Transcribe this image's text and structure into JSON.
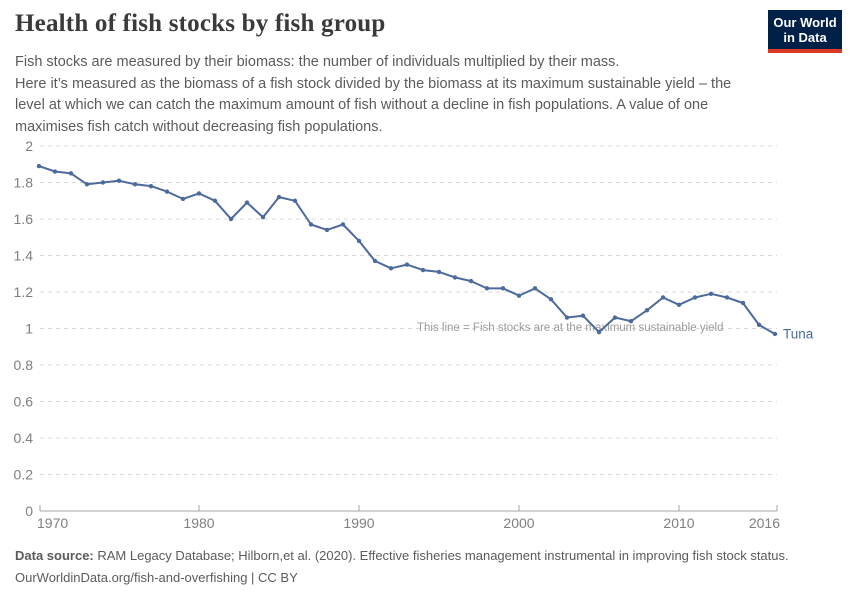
{
  "header": {
    "title": "Health of fish stocks by fish group",
    "logo": {
      "line1": "Our World",
      "line2": "in Data",
      "bg_color": "#002147",
      "bar_color": "#dc3927"
    }
  },
  "subtitle": {
    "lines": [
      "Fish stocks are measured by their biomass: the number of individuals multiplied by their mass.",
      "Here it’s measured as the biomass of a fish stock divided by the biomass at its maximum sustainable yield – the",
      "level at which we can catch the maximum amount of fish without a decline in fish populations. A value of one",
      "maximises fish catch without decreasing fish populations."
    ]
  },
  "chart_data": {
    "type": "line",
    "title": "Health of fish stocks by fish group",
    "x": [
      1970,
      1971,
      1972,
      1973,
      1974,
      1975,
      1976,
      1977,
      1978,
      1979,
      1980,
      1981,
      1982,
      1983,
      1984,
      1985,
      1986,
      1987,
      1988,
      1989,
      1990,
      1991,
      1992,
      1993,
      1994,
      1995,
      1996,
      1997,
      1998,
      1999,
      2000,
      2001,
      2002,
      2003,
      2004,
      2005,
      2006,
      2007,
      2008,
      2009,
      2010,
      2011,
      2012,
      2013,
      2014,
      2015,
      2016
    ],
    "series": [
      {
        "name": "Tuna",
        "values": [
          1.89,
          1.86,
          1.85,
          1.79,
          1.8,
          1.81,
          1.79,
          1.78,
          1.75,
          1.71,
          1.74,
          1.7,
          1.6,
          1.69,
          1.61,
          1.72,
          1.7,
          1.57,
          1.54,
          1.57,
          1.48,
          1.37,
          1.33,
          1.35,
          1.32,
          1.31,
          1.28,
          1.26,
          1.22,
          1.22,
          1.18,
          1.22,
          1.16,
          1.06,
          1.07,
          0.98,
          1.06,
          1.04,
          1.1,
          1.17,
          1.13,
          1.17,
          1.19,
          1.17,
          1.14,
          1.02,
          0.97
        ]
      }
    ],
    "xlabel": "",
    "ylabel": "",
    "ylim": [
      0,
      2
    ],
    "yticks": [
      0,
      0.2,
      0.4,
      0.6,
      0.8,
      1,
      1.2,
      1.4,
      1.6,
      1.8,
      2
    ],
    "ytick_labels": [
      "0",
      "0.2",
      "0.4",
      "0.6",
      "0.8",
      "1",
      "1.2",
      "1.4",
      "1.6",
      "1.8",
      "2"
    ],
    "xticks": [
      1970,
      1980,
      1990,
      2000,
      2010,
      2016
    ],
    "xtick_labels": [
      "1970",
      "1980",
      "1990",
      "2000",
      "2010",
      "2016"
    ],
    "grid": "horizontal-dashed",
    "legend_position": "end-of-line-label",
    "annotation": {
      "text": "This line = Fish stocks are at the maximum sustainable yield",
      "value": 1
    },
    "colors": {
      "line": "#4c6a9c",
      "grid": "#d8d8d8",
      "axis": "#a5a5a5",
      "tick_label": "#7f7f7f",
      "annotation": "#9c9c9c"
    }
  },
  "footer": {
    "source_label": "Data source:",
    "source_text": " RAM Legacy Database; Hilborn,et al. (2020). Effective fisheries management instrumental in improving fish stock status.",
    "license_line": "OurWorldinData.org/fish-and-overfishing | CC BY"
  }
}
